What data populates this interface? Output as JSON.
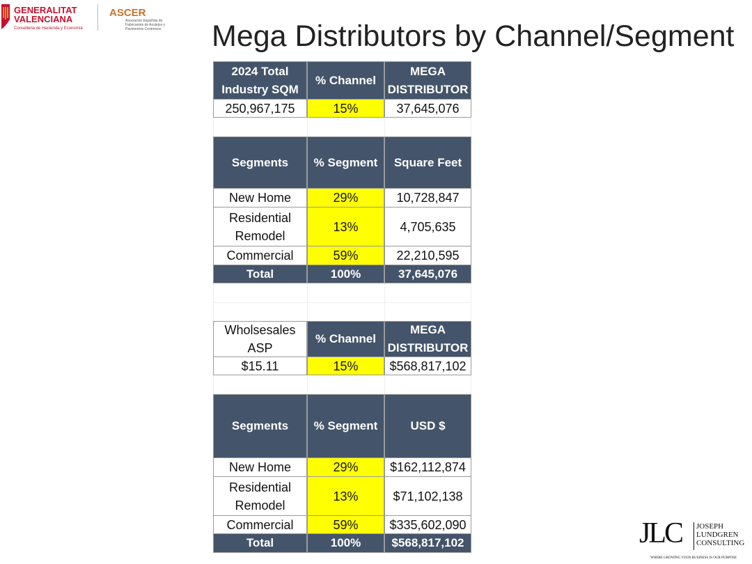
{
  "logos": {
    "generalitat": {
      "name": [
        "GENERALITAT",
        "VALENCIANA"
      ],
      "dept": "Conselleria de Hacienda y Economía"
    },
    "ascer": {
      "name": "ASCER",
      "subtitle": "Asociación Española de Fabricantes de Azulejos y Pavimentos Cerámicos"
    },
    "jlc": {
      "mark": "JLC",
      "name": [
        "JOSEPH",
        "LUNDGREN",
        "CONSULTING"
      ],
      "tagline": "WHERE GROWING YOUR BUSINESS IS OUR PURPOSE"
    }
  },
  "title": "Mega Distributors by Channel/Segment",
  "tables": [
    {
      "header": [
        "2024 Total Industry SQM",
        "% Channel",
        "MEGA DISTRIBUTOR"
      ],
      "rows": [
        [
          "250,967,175",
          "15%",
          "37,645,076"
        ]
      ]
    },
    {
      "header": [
        "Segments",
        "% Segment",
        "Square Feet"
      ],
      "rows": [
        [
          "New Home",
          "29%",
          "10,728,847"
        ],
        [
          "Residential Remodel",
          "13%",
          "4,705,635"
        ],
        [
          "Commercial",
          "59%",
          "22,210,595"
        ]
      ],
      "total": [
        "Total",
        "100%",
        "37,645,076"
      ]
    },
    {
      "header": [
        "Wholsesales ASP",
        "% Channel",
        "MEGA DISTRIBUTOR"
      ],
      "rows": [
        [
          "$15.11",
          "15%",
          "$568,817,102"
        ]
      ]
    },
    {
      "header": [
        "Segments",
        "% Segment",
        "USD $"
      ],
      "rows": [
        [
          "New Home",
          "29%",
          "$162,112,874"
        ],
        [
          "Residential Remodel",
          "13%",
          "$71,102,138"
        ],
        [
          "Commercial",
          "59%",
          "$335,602,090"
        ]
      ],
      "total": [
        "Total",
        "100%",
        "$568,817,102"
      ]
    }
  ]
}
